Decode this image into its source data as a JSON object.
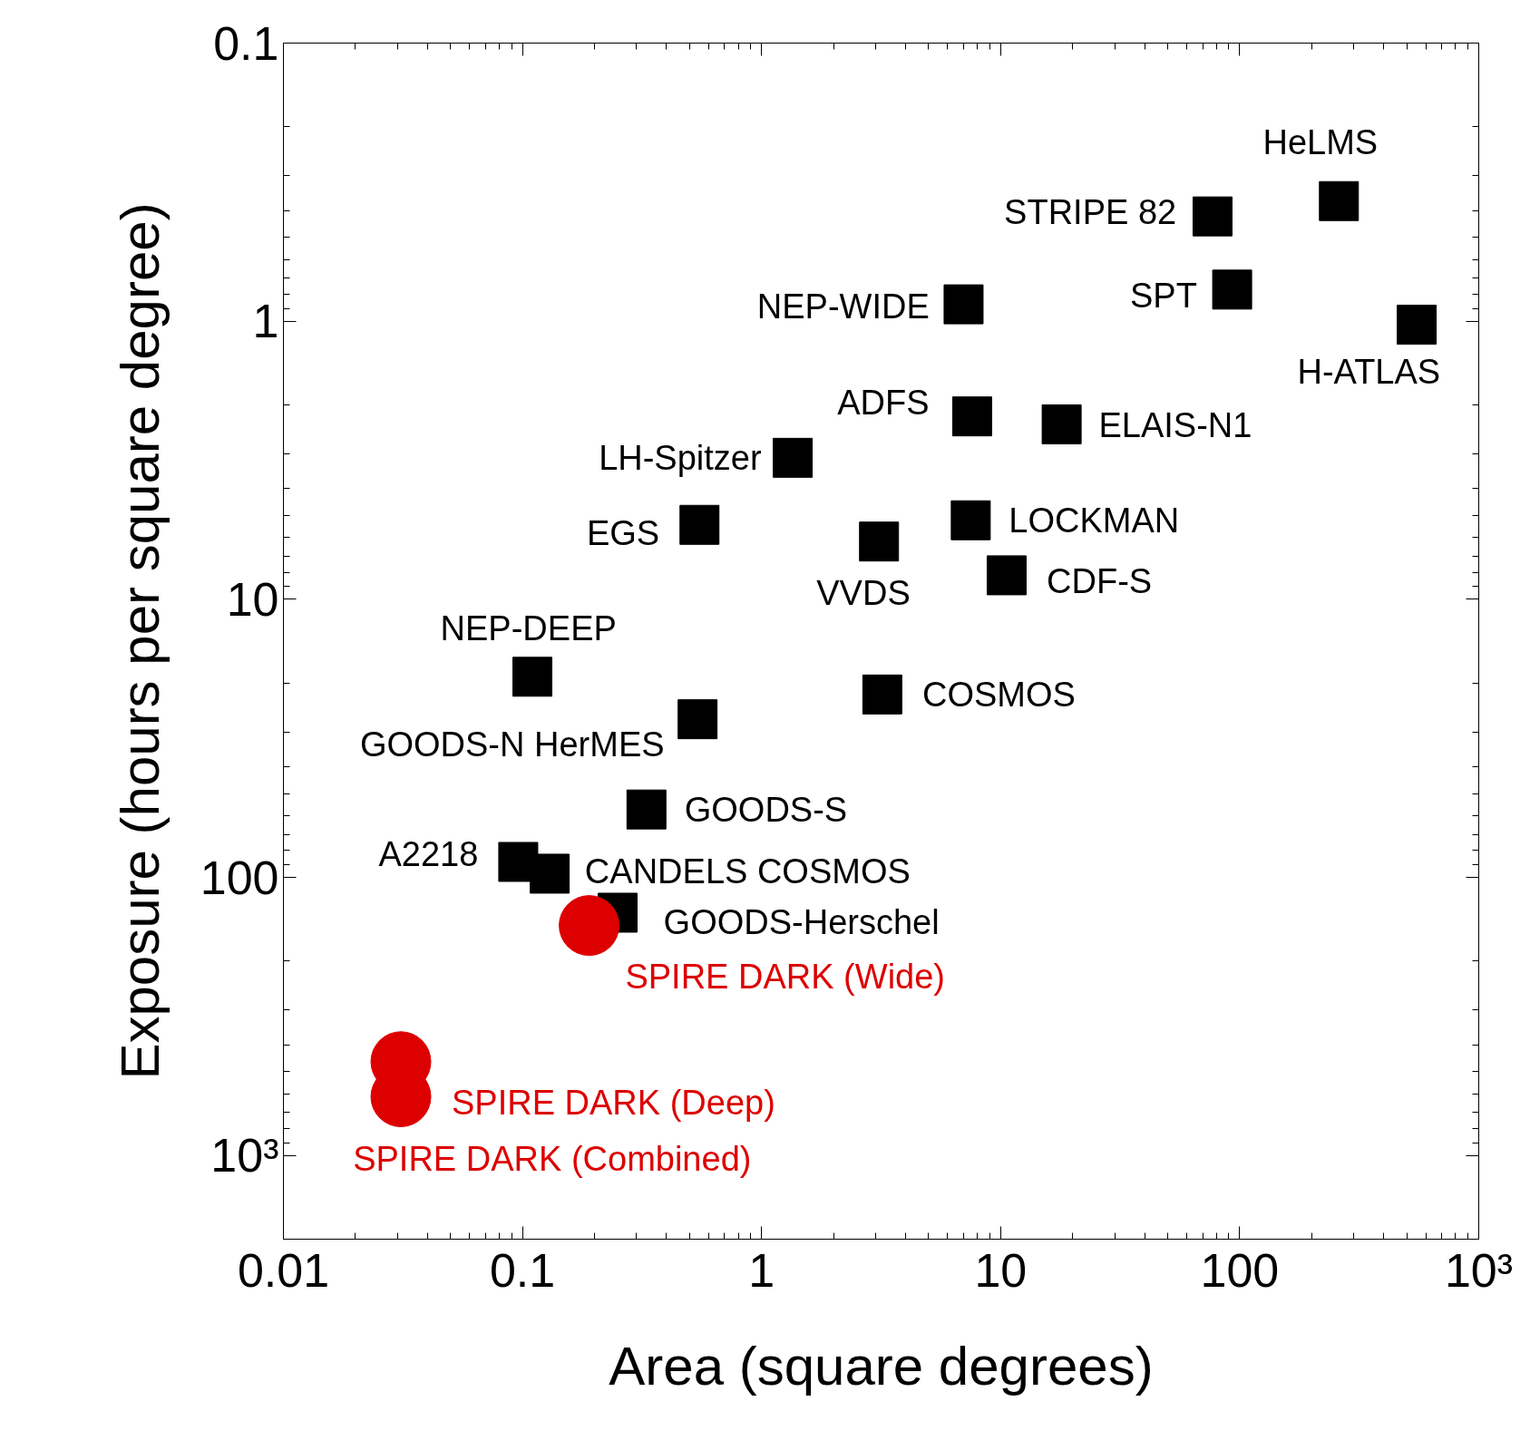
{
  "chart_data": {
    "type": "scatter",
    "xlabel": "Area (square degrees)",
    "ylabel": "Exposure (hours per square degree)",
    "log": "xy",
    "grid": false,
    "xlim": [
      0.01,
      1000
    ],
    "ylim": [
      2000,
      0.1
    ],
    "xticks": [
      0.01,
      0.1,
      1,
      10,
      100,
      {
        "value": 1000,
        "label": "10³"
      }
    ],
    "yticks": [
      0.1,
      1,
      10,
      100,
      {
        "value": 1000,
        "label": "10³"
      }
    ],
    "series": [
      {
        "color": "#000000",
        "marker": "square",
        "x": [
          260,
          77,
          93,
          7.0,
          550,
          7.6,
          18,
          1.35,
          0.55,
          7.5,
          3.1,
          10.6,
          0.11,
          3.2,
          0.54,
          0.33,
          0.096,
          0.13,
          0.25
        ],
        "values": [
          0.37,
          0.42,
          0.77,
          0.87,
          1.03,
          2.2,
          2.35,
          3.1,
          5.4,
          5.2,
          6.2,
          8.2,
          19,
          22,
          27,
          57,
          88,
          97,
          134
        ]
      },
      {
        "color": "#dd0000",
        "marker": "circle",
        "x": [
          0.19,
          0.031,
          0.031
        ],
        "values": [
          149,
          460,
          615
        ]
      }
    ],
    "annotations": [
      {
        "text": "HeLMS",
        "x": 260,
        "y": 0.37
      },
      {
        "text": "STRIPE 82",
        "x": 77,
        "y": 0.42
      },
      {
        "text": "SPT",
        "x": 93,
        "y": 0.77
      },
      {
        "text": "NEP-WIDE",
        "x": 7.0,
        "y": 0.87
      },
      {
        "text": "H-ATLAS",
        "x": 550,
        "y": 1.03
      },
      {
        "text": "ADFS",
        "x": 7.6,
        "y": 2.2
      },
      {
        "text": "ELAIS-N1",
        "x": 18,
        "y": 2.35
      },
      {
        "text": "LH-Spitzer",
        "x": 1.35,
        "y": 3.1
      },
      {
        "text": "EGS",
        "x": 0.55,
        "y": 5.4
      },
      {
        "text": "LOCKMAN",
        "x": 7.5,
        "y": 5.2
      },
      {
        "text": "VVDS",
        "x": 3.1,
        "y": 6.2
      },
      {
        "text": "CDF-S",
        "x": 10.6,
        "y": 8.2
      },
      {
        "text": "NEP-DEEP",
        "x": 0.11,
        "y": 19
      },
      {
        "text": "COSMOS",
        "x": 3.2,
        "y": 22
      },
      {
        "text": "GOODS-N HerMES",
        "x": 0.54,
        "y": 27
      },
      {
        "text": "GOODS-S",
        "x": 0.33,
        "y": 57
      },
      {
        "text": "A2218",
        "x": 0.096,
        "y": 88
      },
      {
        "text": "CANDELS COSMOS",
        "x": 0.13,
        "y": 97
      },
      {
        "text": "GOODS-Herschel",
        "x": 0.25,
        "y": 134
      },
      {
        "text": "SPIRE DARK (Wide)",
        "x": 0.19,
        "y": 149
      },
      {
        "text": "SPIRE DARK (Deep)",
        "x": 0.031,
        "y": 460
      },
      {
        "text": "SPIRE DARK (Combined)",
        "x": 0.031,
        "y": 615
      }
    ]
  }
}
